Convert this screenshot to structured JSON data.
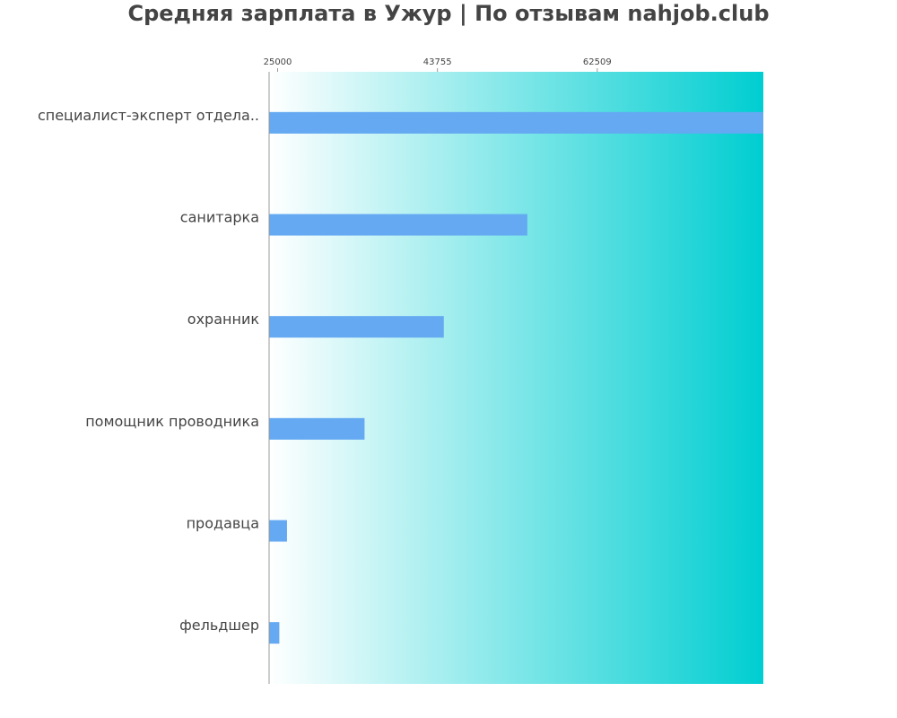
{
  "chart_data": {
    "type": "bar",
    "orientation": "horizontal",
    "title": "Средняя зарплата в Ужур | По отзывам nahjob.club",
    "xlabel": "",
    "ylabel": "",
    "x_axis_position": "top",
    "x_ticks": [
      "25000",
      "43755",
      "62509"
    ],
    "tick_values": [
      25000,
      43755,
      62509
    ],
    "xlim": [
      24000,
      82000
    ],
    "categories": [
      "специалист-эксперт отдела..",
      "санитарка",
      "охранник",
      "помощник проводника",
      "продавца",
      "фельдшер"
    ],
    "values": [
      82000,
      54300,
      44500,
      35200,
      26100,
      25200
    ],
    "grid": false,
    "legend": "none",
    "bar_color": "#64a9f2",
    "background_gradient": [
      "#ffffff",
      "#00ced1"
    ],
    "axis_color": "#999999",
    "text_color": "#444444"
  }
}
